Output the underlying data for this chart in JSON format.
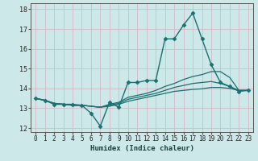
{
  "title": "",
  "xlabel": "Humidex (Indice chaleur)",
  "ylabel": "",
  "background_color": "#cce8e8",
  "grid_color": "#d8b8c8",
  "line_color": "#1a7070",
  "xlim": [
    -0.5,
    23.5
  ],
  "ylim": [
    11.8,
    18.3
  ],
  "yticks": [
    12,
    13,
    14,
    15,
    16,
    17,
    18
  ],
  "xticks": [
    0,
    1,
    2,
    3,
    4,
    5,
    6,
    7,
    8,
    9,
    10,
    11,
    12,
    13,
    14,
    15,
    16,
    17,
    18,
    19,
    20,
    21,
    22,
    23
  ],
  "series": [
    {
      "x": [
        0,
        1,
        2,
        3,
        4,
        5,
        6,
        7,
        8,
        9,
        10,
        11,
        12,
        13,
        14,
        15,
        16,
        17,
        18,
        19,
        20,
        21,
        22,
        23
      ],
      "y": [
        13.5,
        13.4,
        13.2,
        13.2,
        13.2,
        13.15,
        12.75,
        12.1,
        13.3,
        13.05,
        14.3,
        14.3,
        14.4,
        14.4,
        16.5,
        16.5,
        17.2,
        17.8,
        16.5,
        15.2,
        14.3,
        14.1,
        13.85,
        13.9
      ],
      "marker": "D",
      "markersize": 2.5,
      "linewidth": 1.0,
      "color": "#1a7070"
    },
    {
      "x": [
        0,
        1,
        2,
        3,
        4,
        5,
        6,
        7,
        8,
        9,
        10,
        11,
        12,
        13,
        14,
        15,
        16,
        17,
        18,
        19,
        20,
        21,
        22,
        23
      ],
      "y": [
        13.5,
        13.4,
        13.25,
        13.2,
        13.15,
        13.15,
        13.1,
        13.05,
        13.2,
        13.3,
        13.55,
        13.65,
        13.75,
        13.9,
        14.1,
        14.25,
        14.45,
        14.6,
        14.7,
        14.85,
        14.85,
        14.55,
        13.9,
        13.9
      ],
      "marker": null,
      "markersize": 0,
      "linewidth": 0.9,
      "color": "#1a7070"
    },
    {
      "x": [
        0,
        1,
        2,
        3,
        4,
        5,
        6,
        7,
        8,
        9,
        10,
        11,
        12,
        13,
        14,
        15,
        16,
        17,
        18,
        19,
        20,
        21,
        22,
        23
      ],
      "y": [
        13.5,
        13.4,
        13.25,
        13.2,
        13.15,
        13.15,
        13.1,
        13.05,
        13.15,
        13.25,
        13.45,
        13.55,
        13.65,
        13.75,
        13.9,
        14.05,
        14.15,
        14.25,
        14.3,
        14.35,
        14.25,
        14.1,
        13.9,
        13.9
      ],
      "marker": null,
      "markersize": 0,
      "linewidth": 0.9,
      "color": "#1a7070"
    },
    {
      "x": [
        0,
        1,
        2,
        3,
        4,
        5,
        6,
        7,
        8,
        9,
        10,
        11,
        12,
        13,
        14,
        15,
        16,
        17,
        18,
        19,
        20,
        21,
        22,
        23
      ],
      "y": [
        13.5,
        13.4,
        13.25,
        13.2,
        13.15,
        13.15,
        13.1,
        13.05,
        13.1,
        13.2,
        13.35,
        13.45,
        13.55,
        13.65,
        13.75,
        13.85,
        13.9,
        13.95,
        13.98,
        14.05,
        14.05,
        14.0,
        13.9,
        13.9
      ],
      "marker": null,
      "markersize": 0,
      "linewidth": 0.9,
      "color": "#1a7070"
    }
  ]
}
